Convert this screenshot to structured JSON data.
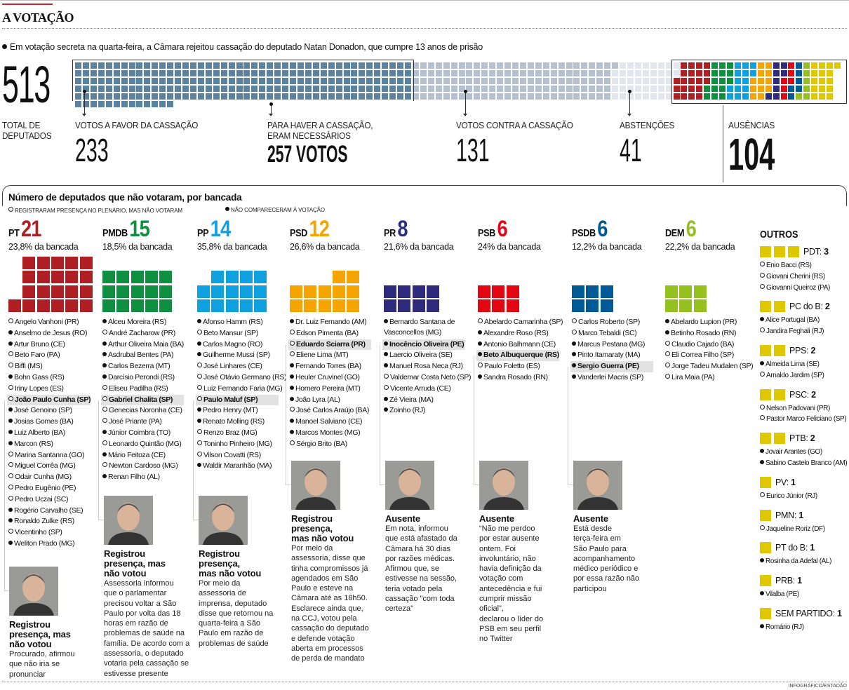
{
  "header": {
    "title": "A VOTAÇÃO",
    "subtitle": "Em votação secreta na quarta-feira, a Câmara rejeitou cassação do deputado Natan Donadon, que cumpre 13 anos de prisão"
  },
  "stats": {
    "total": {
      "value": "513",
      "label": "TOTAL DE\nDEPUTADOS"
    },
    "favor": {
      "value": "233",
      "label": "VOTOS A FAVOR DA CASSAÇÃO",
      "color": "#5b83a0",
      "count": 233
    },
    "needed": {
      "value": "257 VOTOS",
      "label": "PARA HAVER A CASSAÇÃO,\nERAM NECESSÁRIOS"
    },
    "contra": {
      "value": "131",
      "label": "VOTOS CONTRA A CASSAÇÃO",
      "color": "#b5c1cf",
      "count": 131
    },
    "abstention": {
      "value": "41",
      "label": "ABSTENÇÕES",
      "color": "#e2e6ed",
      "count": 41
    },
    "absences": {
      "value": "104",
      "label": "AUSÊNCIAS",
      "count": 104
    }
  },
  "section": {
    "title": "Número de deputados que não votaram, por bancada",
    "legend_present": "REGISTRARAM PRESENÇA NO PLENÁRIO, MAS NÃO VOTARAM",
    "legend_absent": "NÃO COMPARECERAM À VOTAÇÃO"
  },
  "parties": [
    {
      "name": "PT",
      "count": "21",
      "n": 21,
      "pct": "23,8% da bancada",
      "color": "#b01f24",
      "members": [
        {
          "name": "Angelo Vanhoni (PR)",
          "status": "present"
        },
        {
          "name": "Anselmo de Jesus (RO)",
          "status": "absent"
        },
        {
          "name": "Artur Bruno (CE)",
          "status": "absent"
        },
        {
          "name": "Beto Faro (PA)",
          "status": "present"
        },
        {
          "name": "Biffi (MS)",
          "status": "present"
        },
        {
          "name": "Bohn Gass (RS)",
          "status": "absent"
        },
        {
          "name": "Iriny Lopes (ES)",
          "status": "present"
        },
        {
          "name": "João Paulo Cunha (SP)",
          "status": "present",
          "highlight": true
        },
        {
          "name": "José Genoino (SP)",
          "status": "absent"
        },
        {
          "name": "Josias Gomes (BA)",
          "status": "absent"
        },
        {
          "name": "Luiz Alberto (BA)",
          "status": "absent"
        },
        {
          "name": "Marcon (RS)",
          "status": "absent"
        },
        {
          "name": "Marina Santanna (GO)",
          "status": "present"
        },
        {
          "name": "Miguel Corrêa (MG)",
          "status": "present"
        },
        {
          "name": "Odair Cunha (MG)",
          "status": "present"
        },
        {
          "name": "Pedro Eugênio (PE)",
          "status": "present"
        },
        {
          "name": "Pedro Uczai (SC)",
          "status": "present"
        },
        {
          "name": "Rogério Carvalho (SE)",
          "status": "absent"
        },
        {
          "name": "Ronaldo Zulke (RS)",
          "status": "absent"
        },
        {
          "name": "Vicentinho (SP)",
          "status": "present"
        },
        {
          "name": "Weliton Prado (MG)",
          "status": "absent"
        }
      ],
      "caption": {
        "heading": "Registrou\npresença, mas\nnão votou",
        "text": "Procurado, afirmou\nque não iria se\npronunciar"
      }
    },
    {
      "name": "PMDB",
      "count": "15",
      "n": 15,
      "pct": "18,5% da bancada",
      "color": "#0e9040",
      "members": [
        {
          "name": "Alceu Moreira (RS)",
          "status": "absent"
        },
        {
          "name": "André Zacharow (PR)",
          "status": "present"
        },
        {
          "name": "Arthur Oliveira Maia (BA)",
          "status": "absent"
        },
        {
          "name": "Asdrubal Bentes (PA)",
          "status": "absent"
        },
        {
          "name": "Carlos Bezerra (MT)",
          "status": "absent"
        },
        {
          "name": "Darcísio Perondi (RS)",
          "status": "absent"
        },
        {
          "name": "Eliseu Padilha (RS)",
          "status": "present"
        },
        {
          "name": "Gabriel Chalita (SP)",
          "status": "present",
          "highlight": true
        },
        {
          "name": "Genecias Noronha (CE)",
          "status": "present"
        },
        {
          "name": "José Priante (PA)",
          "status": "present"
        },
        {
          "name": "Júnior Coimbra (TO)",
          "status": "absent"
        },
        {
          "name": "Leonardo Quintão (MG)",
          "status": "present"
        },
        {
          "name": "Mário Feitoza (CE)",
          "status": "absent"
        },
        {
          "name": "Newton Cardoso (MG)",
          "status": "present"
        },
        {
          "name": "Renan Filho (AL)",
          "status": "absent"
        }
      ],
      "caption": {
        "heading": "Registrou\npresença, mas\nnão votou",
        "text": "Assessoria informou\nque o parlamentar\nprecisou voltar a São\nPaulo por volta das 18\nhoras em razão de\nproblemas de saúde na\nfamília. De acordo com a\nassessoria, o deputado\nvotaria pela cassação se\nestivesse presente"
      }
    },
    {
      "name": "PP",
      "count": "14",
      "n": 14,
      "pct": "35,8% da bancada",
      "color": "#0fa0e0",
      "members": [
        {
          "name": "Afonso Hamm (RS)",
          "status": "absent"
        },
        {
          "name": "Beto Mansur (SP)",
          "status": "present"
        },
        {
          "name": "Carlos Magno (RO)",
          "status": "absent"
        },
        {
          "name": "Guilherme Mussi (SP)",
          "status": "absent"
        },
        {
          "name": "José Linhares (CE)",
          "status": "present"
        },
        {
          "name": "José Otávio Germano (RS)",
          "status": "present"
        },
        {
          "name": "Luiz Fernando Faria (MG)",
          "status": "present"
        },
        {
          "name": "Paulo Maluf (SP)",
          "status": "present",
          "highlight": true
        },
        {
          "name": "Pedro Henry (MT)",
          "status": "absent"
        },
        {
          "name": "Renato Molling (RS)",
          "status": "absent"
        },
        {
          "name": "Renzo Braz (MG)",
          "status": "present"
        },
        {
          "name": "Toninho Pinheiro (MG)",
          "status": "present"
        },
        {
          "name": "Vilson Covatti (RS)",
          "status": "present"
        },
        {
          "name": "Waldir Maranhão (MA)",
          "status": "absent"
        }
      ],
      "caption": {
        "heading": "Registrou\npresença,\nmas não votou",
        "text": "Por meio da\nassessoria de\nimprensa, deputado\ndisse que retornou na\nquarta-feira a São\nPaulo em razão de\nproblemas de saúde"
      }
    },
    {
      "name": "PSD",
      "count": "12",
      "n": 12,
      "pct": "26,6% da bancada",
      "color": "#f5a400",
      "members": [
        {
          "name": "Dr. Luiz Fernando (AM)",
          "status": "absent"
        },
        {
          "name": "Edson Pimenta (BA)",
          "status": "present"
        },
        {
          "name": "Eduardo Sciarra (PR)",
          "status": "present",
          "highlight": true
        },
        {
          "name": "Eliene Lima (MT)",
          "status": "present"
        },
        {
          "name": "Fernando Torres (BA)",
          "status": "absent"
        },
        {
          "name": "Heuler Cruvinel (GO)",
          "status": "absent"
        },
        {
          "name": "Homero Pereira (MT)",
          "status": "absent"
        },
        {
          "name": "João Lyra (AL)",
          "status": "absent"
        },
        {
          "name": "José Carlos Araújo (BA)",
          "status": "present"
        },
        {
          "name": "Manoel Salviano (CE)",
          "status": "absent"
        },
        {
          "name": "Marcos Montes (MG)",
          "status": "absent"
        },
        {
          "name": "Sérgio Brito (BA)",
          "status": "present"
        }
      ],
      "caption": {
        "heading": "Registrou\npresença,\nmas não votou",
        "text": "Por meio da\nassessoria, disse que\ntinha compromissos já\nagendados em São\nPaulo e esteve na\nCâmara até as 18h50.\nEsclarece ainda que,\nna CCJ, votou pela\ncassação do deputado\ne defende votação\naberta em processos\nde perda de mandato"
      }
    },
    {
      "name": "PR",
      "count": "8",
      "n": 8,
      "pct": "21,6% da bancada",
      "color": "#2e2a7e",
      "members": [
        {
          "name": "Bernardo Santana de\nVasconcellos (MG)",
          "status": "absent"
        },
        {
          "name": "Inocêncio Oliveira (PE)",
          "status": "absent",
          "highlight": true
        },
        {
          "name": "Laercio Oliveira (SE)",
          "status": "absent"
        },
        {
          "name": "Manuel Rosa Neca (RJ)",
          "status": "absent"
        },
        {
          "name": "Valdemar Costa Neto (SP)",
          "status": "present"
        },
        {
          "name": "Vicente Arruda (CE)",
          "status": "present"
        },
        {
          "name": "Zé Vieira (MA)",
          "status": "absent"
        },
        {
          "name": "Zoinho (RJ)",
          "status": "absent"
        }
      ],
      "caption": {
        "heading": "Ausente",
        "text": "Em nota, informou\nque está afastado da\nCâmara há 30 dias\npor razões médicas.\nAfirmou que, se\nestivesse na sessão,\nteria votado pela\ncassação \"com toda\ncerteza\""
      }
    },
    {
      "name": "PSB",
      "count": "6",
      "n": 6,
      "pct": "24% da bancada",
      "color": "#e30613",
      "members": [
        {
          "name": "Abelardo Camarinha (SP)",
          "status": "present"
        },
        {
          "name": "Alexandre Roso (RS)",
          "status": "absent"
        },
        {
          "name": "Antonio Balhmann (CE)",
          "status": "absent"
        },
        {
          "name": "Beto Albuquerque (RS)",
          "status": "absent",
          "highlight": true
        },
        {
          "name": "Paulo Foletto (ES)",
          "status": "present"
        },
        {
          "name": "Sandra Rosado (RN)",
          "status": "absent"
        }
      ],
      "caption": {
        "heading": "Ausente",
        "text": "“Não me perdoo\npor estar ausente\nontem. Foi\ninvoluntário, não\nhavia definição da\nvotação com\nantecedência e fui\ncumprir missão\noficial”,\ndeclarou o líder do\nPSB em seu perfil\nno Twitter"
      }
    },
    {
      "name": "PSDB",
      "count": "6",
      "n": 6,
      "pct": "12,2% da bancada",
      "color": "#005a96",
      "members": [
        {
          "name": "Carlos Roberto (SP)",
          "status": "present"
        },
        {
          "name": "Marco Tebaldi (SC)",
          "status": "present"
        },
        {
          "name": "Marcus Pestana (MG)",
          "status": "absent"
        },
        {
          "name": "Pinto Itamaraty (MA)",
          "status": "absent"
        },
        {
          "name": "Sergio Guerra (PE)",
          "status": "absent",
          "highlight": true
        },
        {
          "name": "Vanderlei Macris (SP)",
          "status": "absent"
        }
      ],
      "caption": {
        "heading": "Ausente",
        "text": "Está desde\nterça-feira em\nSão Paulo para\nacompanhamento\nmédico periódico e\npor essa razão não\nparticipou"
      }
    },
    {
      "name": "DEM",
      "count": "6",
      "n": 6,
      "pct": "22,2% da bancada",
      "color": "#94c11f",
      "members": [
        {
          "name": "Abelardo Lupion (PR)",
          "status": "absent"
        },
        {
          "name": "Betinho Rosado (RN)",
          "status": "absent"
        },
        {
          "name": "Claudio Cajado (BA)",
          "status": "present"
        },
        {
          "name": "Eli Correa Filho (SP)",
          "status": "present"
        },
        {
          "name": "Jorge Tadeu Mudalen (SP)",
          "status": "present"
        },
        {
          "name": "Lira Maia (PA)",
          "status": "present"
        }
      ]
    }
  ],
  "others": {
    "title": "OUTROS",
    "color": "#e0c800",
    "groups": [
      {
        "name": "PDT:",
        "count": "3",
        "n": 3,
        "members": [
          {
            "name": "Enio Bacci (RS)",
            "status": "present"
          },
          {
            "name": "Giovani Cherini (RS)",
            "status": "present"
          },
          {
            "name": "Giovanni Queiroz (PA)",
            "status": "present"
          }
        ]
      },
      {
        "name": "PC do B:",
        "count": "2",
        "n": 2,
        "members": [
          {
            "name": "Alice Portugal (BA)",
            "status": "absent"
          },
          {
            "name": "Jandira Feghali (RJ)",
            "status": "present"
          }
        ]
      },
      {
        "name": "PPS:",
        "count": "2",
        "n": 2,
        "members": [
          {
            "name": "Almeida Lima (SE)",
            "status": "absent"
          },
          {
            "name": "Arnaldo Jardim (SP)",
            "status": "present"
          }
        ]
      },
      {
        "name": "PSC:",
        "count": "2",
        "n": 2,
        "members": [
          {
            "name": "Nelson Padovani (PR)",
            "status": "present"
          },
          {
            "name": "Pastor Marco Feliciano (SP)",
            "status": "present"
          }
        ]
      },
      {
        "name": "PTB:",
        "count": "2",
        "n": 2,
        "members": [
          {
            "name": "Jovair Arantes (GO)",
            "status": "absent"
          },
          {
            "name": "Sabino Castelo Branco (AM)",
            "status": "absent"
          }
        ]
      },
      {
        "name": "PV:",
        "count": "1",
        "n": 1,
        "members": [
          {
            "name": "Eurico Júnior (RJ)",
            "status": "present"
          }
        ]
      },
      {
        "name": "PMN:",
        "count": "1",
        "n": 1,
        "members": [
          {
            "name": "Jaqueline Roriz (DF)",
            "status": "present"
          }
        ]
      },
      {
        "name": "PT do B:",
        "count": "1",
        "n": 1,
        "members": [
          {
            "name": "Rosinha da Adefal (AL)",
            "status": "absent"
          }
        ]
      },
      {
        "name": "PRB:",
        "count": "1",
        "n": 1,
        "members": [
          {
            "name": "Vilalba (PE)",
            "status": "absent"
          }
        ]
      },
      {
        "name": "SEM PARTIDO:",
        "count": "1",
        "n": 1,
        "members": [
          {
            "name": "Romário (RJ)",
            "status": "absent"
          }
        ]
      }
    ]
  },
  "credit": "INFOGRÁFICO/ESTADÃO"
}
